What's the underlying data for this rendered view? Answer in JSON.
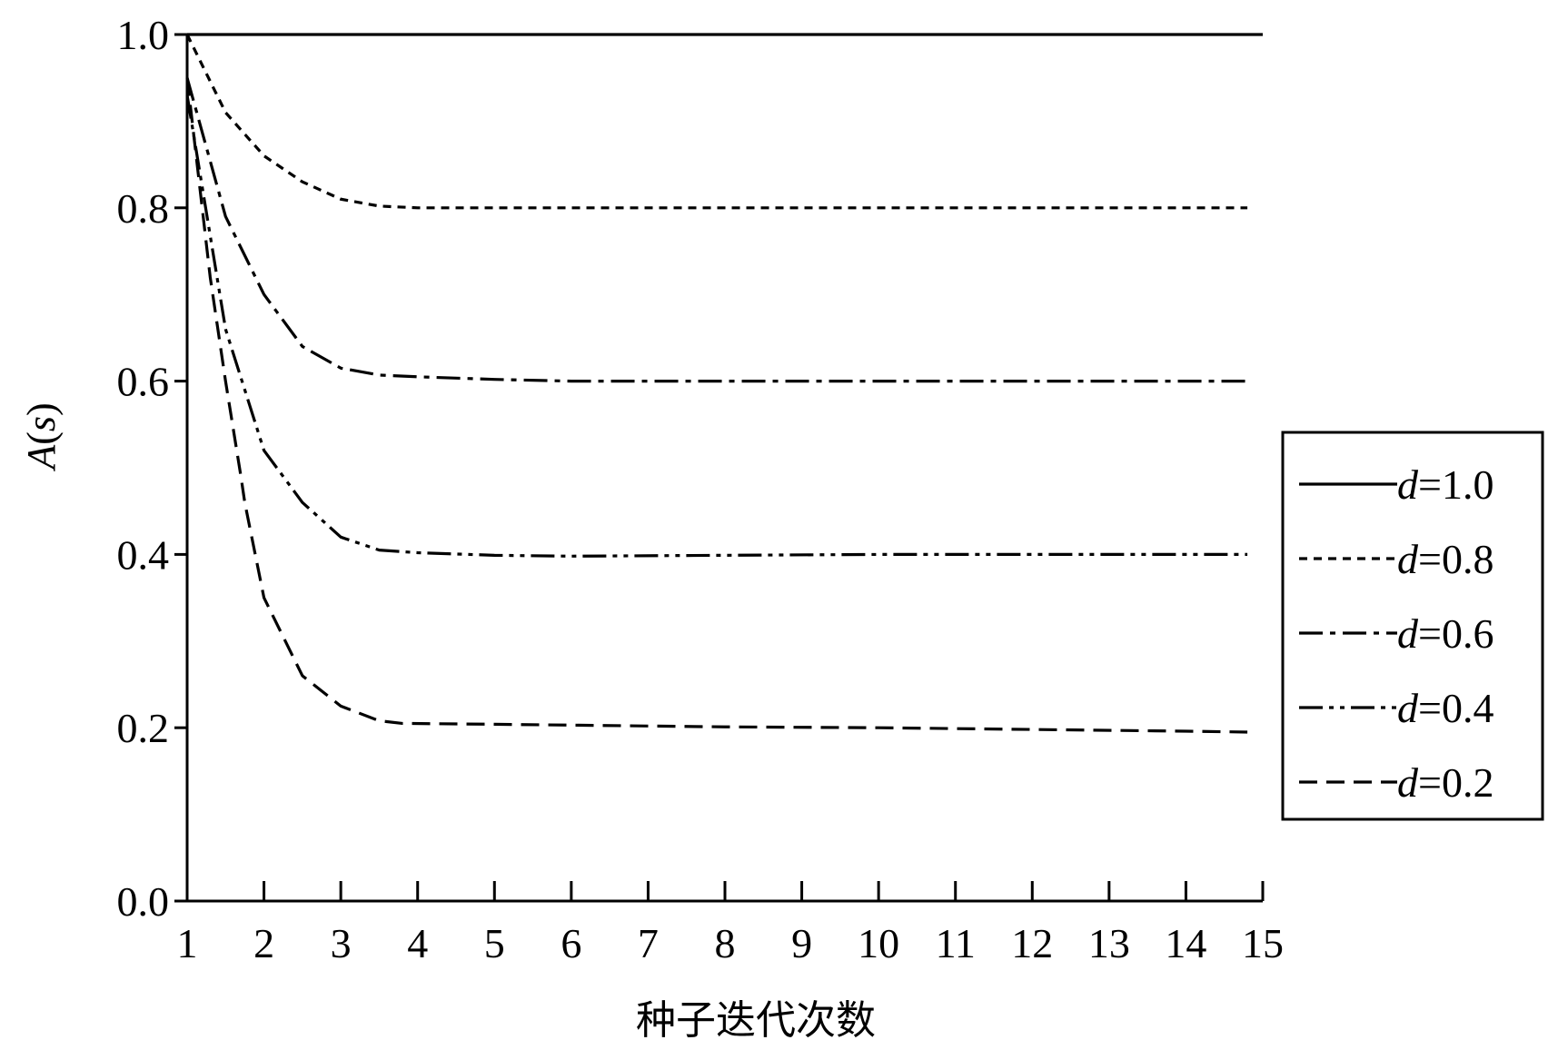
{
  "chart_data": {
    "type": "line",
    "title": "",
    "xlabel": "种子迭代次数",
    "ylabel": "A(s)",
    "ylabel_italic_part": "A",
    "ylabel_paren_open": "(",
    "ylabel_var": "s",
    "ylabel_paren_close": ")",
    "xlim": [
      1,
      15
    ],
    "ylim": [
      0,
      1
    ],
    "x_ticks": [
      "1",
      "2",
      "3",
      "4",
      "5",
      "6",
      "7",
      "8",
      "9",
      "10",
      "11",
      "12",
      "13",
      "14",
      "15"
    ],
    "y_ticks": [
      "0.0",
      "0.2",
      "0.4",
      "0.6",
      "0.8",
      "1.0"
    ],
    "grid": false,
    "legend_position": "right",
    "series": [
      {
        "name": "d=1.0",
        "var": "d",
        "value_label": "=1.0",
        "dash": "solid",
        "x": [
          1,
          15
        ],
        "y": [
          1.0,
          1.0
        ]
      },
      {
        "name": "d=0.8",
        "var": "d",
        "value_label": "=0.8",
        "dash": "short-dash",
        "x": [
          1,
          1.5,
          2,
          2.5,
          3,
          3.5,
          4,
          5,
          6,
          8,
          10,
          12,
          14,
          14.8
        ],
        "y": [
          1.0,
          0.91,
          0.86,
          0.83,
          0.81,
          0.802,
          0.8,
          0.8,
          0.8,
          0.8,
          0.8,
          0.8,
          0.8,
          0.8
        ]
      },
      {
        "name": "d=0.6",
        "var": "d",
        "value_label": "=0.6",
        "dash": "dash-dot",
        "x": [
          1,
          1.5,
          2,
          2.5,
          3,
          3.5,
          4,
          5,
          6,
          8,
          10,
          12,
          14,
          14.8
        ],
        "y": [
          0.95,
          0.79,
          0.7,
          0.64,
          0.615,
          0.607,
          0.605,
          0.602,
          0.6,
          0.6,
          0.6,
          0.6,
          0.6,
          0.6
        ]
      },
      {
        "name": "d=0.4",
        "var": "d",
        "value_label": "=0.4",
        "dash": "dash-dot-dot",
        "x": [
          1,
          1.5,
          2,
          2.5,
          3,
          3.5,
          4,
          5,
          6,
          8,
          10,
          12,
          14,
          14.8
        ],
        "y": [
          0.93,
          0.66,
          0.52,
          0.46,
          0.42,
          0.405,
          0.402,
          0.399,
          0.398,
          0.399,
          0.4,
          0.4,
          0.4,
          0.4
        ]
      },
      {
        "name": "d=0.2",
        "var": "d",
        "value_label": "=0.2",
        "dash": "long-dash",
        "x": [
          1,
          1.3,
          1.5,
          1.7,
          1.75,
          2,
          2.5,
          3,
          3.5,
          3.8,
          5,
          8,
          10,
          12,
          14,
          14.8
        ],
        "y": [
          0.95,
          0.72,
          0.6,
          0.49,
          0.46,
          0.35,
          0.26,
          0.225,
          0.208,
          0.205,
          0.204,
          0.201,
          0.2,
          0.198,
          0.196,
          0.195
        ]
      }
    ]
  }
}
